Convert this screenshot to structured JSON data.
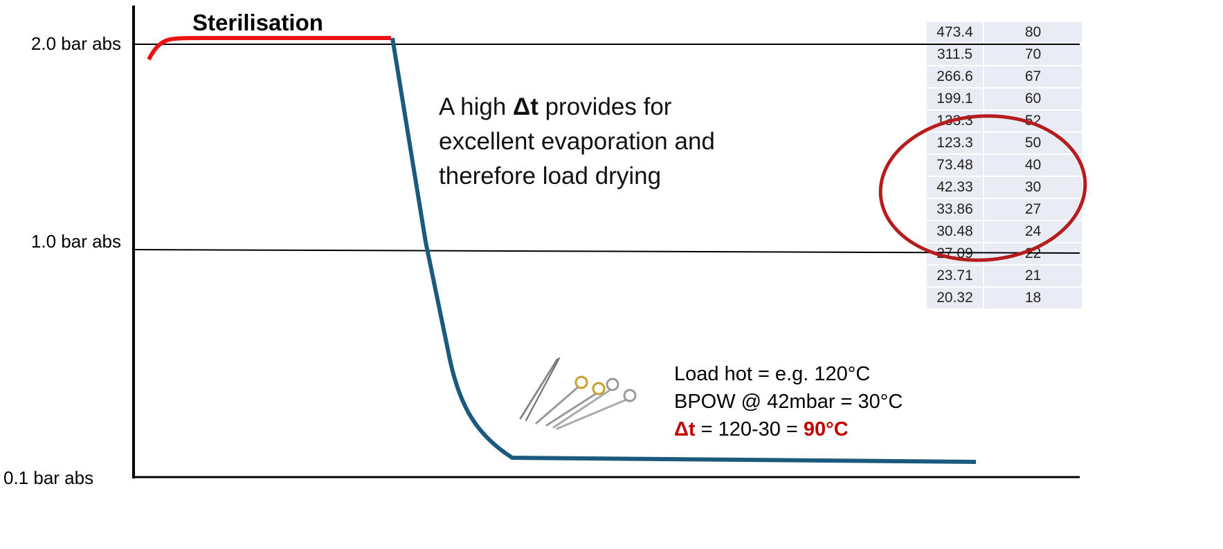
{
  "title": "Sterilisation",
  "axis_labels": [
    "2.0 bar abs",
    "1.0 bar abs",
    "0.1 bar abs"
  ],
  "annotation": {
    "parts": [
      "A high ",
      "Δt",
      " provides for excellent evaporation and therefore load drying"
    ]
  },
  "note": {
    "lines": [
      "Load hot = e.g. 120°C",
      "BPOW @ 42mbar = 30°C"
    ],
    "delta": {
      "label": "Δt",
      "equation": " = 120-30 = ",
      "result": "90°C"
    }
  },
  "table": {
    "rows": [
      [
        "473.4",
        "80"
      ],
      [
        "311.5",
        "70"
      ],
      [
        "266.6",
        "67"
      ],
      [
        "199.1",
        "60"
      ],
      [
        "133.3",
        "52"
      ],
      [
        "123.3",
        "50"
      ],
      [
        "73.48",
        "40"
      ],
      [
        "42.33",
        "30"
      ],
      [
        "33.86",
        "27"
      ],
      [
        "30.48",
        "24"
      ],
      [
        "27.09",
        "22"
      ],
      [
        "23.71",
        "21"
      ],
      [
        "20.32",
        "18"
      ]
    ]
  }
}
